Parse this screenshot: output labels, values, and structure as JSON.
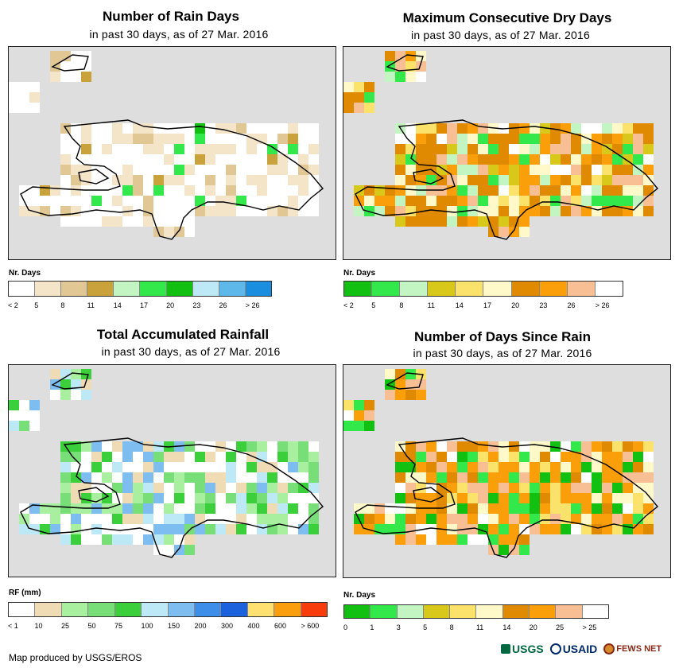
{
  "panels": [
    {
      "title": "Number of Rain Days",
      "subtitle": "in past 30 days, as of 27 Mar. 2016",
      "legend_title": "Nr. Days",
      "legend_colors": [
        "#ffffff",
        "#f5e5c8",
        "#e0c793",
        "#c9a23c",
        "#c2f5c2",
        "#33e84a",
        "#11c011",
        "#bde9f7",
        "#5fb8ea",
        "#1c8ee0"
      ],
      "legend_labels": [
        "< 2",
        "5",
        "8",
        "11",
        "14",
        "17",
        "20",
        "23",
        "26",
        "> 26"
      ],
      "map_category_colors": [
        "#ffffff",
        "#f5e5c8",
        "#e0c793",
        "#c9a23c",
        "#33e84a",
        "#11c011"
      ]
    },
    {
      "title": "Maximum Consecutive Dry Days",
      "subtitle": "in past 30 days, as of 27 Mar. 2016",
      "legend_title": "Nr. Days",
      "legend_colors": [
        "#11c011",
        "#33e84a",
        "#c2f5c2",
        "#d8c81a",
        "#fbe36b",
        "#fff8c8",
        "#df8a00",
        "#fa9e0a",
        "#f9bf94",
        "#ffffff"
      ],
      "legend_labels": [
        "< 2",
        "5",
        "8",
        "11",
        "14",
        "17",
        "20",
        "23",
        "26",
        "> 26"
      ],
      "map_category_colors": [
        "#df8a00",
        "#fa9e0a",
        "#f9bf94",
        "#fff8c8",
        "#fbe36b",
        "#d8c81a",
        "#c2f5c2",
        "#33e84a",
        "#ffffff"
      ]
    },
    {
      "title": "Total Accumulated Rainfall",
      "subtitle": "in past 30 days, as of 27 Mar. 2016",
      "legend_title": "RF (mm)",
      "legend_colors": [
        "#ffffff",
        "#f0dcb4",
        "#a8f0a0",
        "#78de78",
        "#3ccf3c",
        "#bde9f7",
        "#7ebdf0",
        "#3c8ee8",
        "#1c62dc",
        "#ffe070",
        "#fb9e0e",
        "#f83c0c"
      ],
      "legend_labels": [
        "< 1",
        "10",
        "25",
        "50",
        "75",
        "100",
        "150",
        "200",
        "300",
        "400",
        "600",
        "> 600"
      ],
      "map_category_colors": [
        "#ffffff",
        "#f0dcb4",
        "#a8f0a0",
        "#78de78",
        "#3ccf3c",
        "#7ebdf0",
        "#bde9f7"
      ]
    },
    {
      "title": "Number of Days Since Rain",
      "subtitle": "in past 30 days, as of 27 Mar. 2016",
      "legend_title": "Nr. Days",
      "legend_colors": [
        "#11c011",
        "#33e84a",
        "#c2f5c2",
        "#d8c81a",
        "#fbe36b",
        "#fff8c8",
        "#df8a00",
        "#fa9e0a",
        "#f9bf94",
        "#ffffff"
      ],
      "legend_labels": [
        "0",
        "1",
        "3",
        "5",
        "8",
        "11",
        "14",
        "20",
        "25",
        "> 25"
      ],
      "map_category_colors": [
        "#fa9e0a",
        "#f9bf94",
        "#df8a00",
        "#fff8c8",
        "#33e84a",
        "#11c011",
        "#fbe36b",
        "#ffffff"
      ]
    }
  ],
  "footer": {
    "credit": "Map produced by USGS/EROS",
    "logo_usgs": "USGS",
    "logo_usaid": "USAID",
    "logo_fews": "FEWS NET"
  }
}
